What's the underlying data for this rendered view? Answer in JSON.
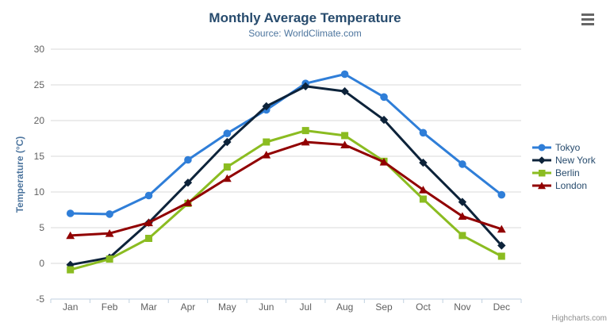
{
  "header": {
    "title": "Monthly Average Temperature",
    "subtitle": "Source: WorldClimate.com",
    "menu_icon": "hamburger-icon"
  },
  "credits": "Highcharts.com",
  "colors": {
    "title": "#274b6d",
    "subtitle": "#4d759e",
    "axis_title": "#4d759e",
    "tick_labels": "#606060",
    "grid_line": "#d8d8d8",
    "axis_line": "#c0d0e0",
    "legend_text": "#274b6d",
    "credits": "#909090",
    "menu_icon": "#666666"
  },
  "chart_data": {
    "type": "line",
    "title": "Monthly Average Temperature",
    "subtitle": "Source: WorldClimate.com",
    "categories": [
      "Jan",
      "Feb",
      "Mar",
      "Apr",
      "May",
      "Jun",
      "Jul",
      "Aug",
      "Sep",
      "Oct",
      "Nov",
      "Dec"
    ],
    "series": [
      {
        "name": "Tokyo",
        "color": "#2f7ed8",
        "marker": "circle",
        "values": [
          7.0,
          6.9,
          9.5,
          14.5,
          18.2,
          21.5,
          25.2,
          26.5,
          23.3,
          18.3,
          13.9,
          9.6
        ]
      },
      {
        "name": "New York",
        "color": "#0d233a",
        "marker": "diamond",
        "values": [
          -0.2,
          0.8,
          5.7,
          11.3,
          17.0,
          22.0,
          24.8,
          24.1,
          20.1,
          14.1,
          8.6,
          2.5
        ]
      },
      {
        "name": "Berlin",
        "color": "#8bbc21",
        "marker": "square",
        "values": [
          -0.9,
          0.6,
          3.5,
          8.4,
          13.5,
          17.0,
          18.6,
          17.9,
          14.3,
          9.0,
          3.9,
          1.0
        ]
      },
      {
        "name": "London",
        "color": "#910000",
        "marker": "triangle",
        "values": [
          3.9,
          4.2,
          5.7,
          8.5,
          11.9,
          15.2,
          17.0,
          16.6,
          14.2,
          10.3,
          6.6,
          4.8
        ]
      }
    ],
    "xlabel": "",
    "ylabel": "Temperature (°C)",
    "ylim": [
      -5,
      30
    ],
    "yticks": [
      -5,
      0,
      5,
      10,
      15,
      20,
      25,
      30
    ],
    "grid": true,
    "legend_position": "right"
  }
}
